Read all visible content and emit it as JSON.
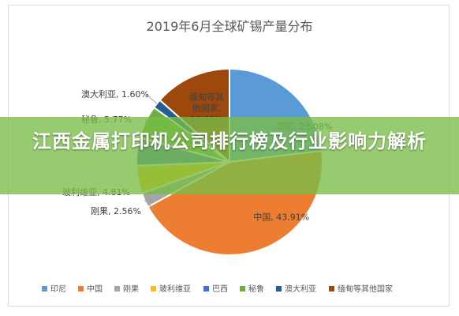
{
  "chart_data": {
    "type": "pie",
    "title": "2019年6月全球矿锡产量分布",
    "legend_position": "bottom",
    "slices": [
      {
        "name": "印尼",
        "value": 23.08,
        "label": "印尼, 23.08%",
        "color": "#5b9bd5"
      },
      {
        "name": "中国",
        "value": 43.91,
        "label": "中国, 43.91%",
        "color": "#ed7d31"
      },
      {
        "name": "刚果",
        "value": 2.56,
        "label": "刚果, 2.56%",
        "color": "#a5a5a5"
      },
      {
        "name": "玻利维亚",
        "value": 4.81,
        "label": "玻利维亚, 4.81%",
        "color": "#ffc000"
      },
      {
        "name": "巴西",
        "value": 4.81,
        "label": "",
        "color": "#4472c4"
      },
      {
        "name": "秘鲁",
        "value": 5.77,
        "label": "秘鲁, 5.77%",
        "color": "#70ad47"
      },
      {
        "name": "澳大利亚",
        "value": 1.6,
        "label": "澳大利亚, 1.60%",
        "color": "#255e91"
      },
      {
        "name": "缅甸等其他国家",
        "value": 13.46,
        "label": "缅甸等其他国家, 13.46%",
        "color": "#9e480e"
      }
    ]
  },
  "overlay": {
    "title": "江西金属打印机公司排行榜及行业影响力解析"
  }
}
